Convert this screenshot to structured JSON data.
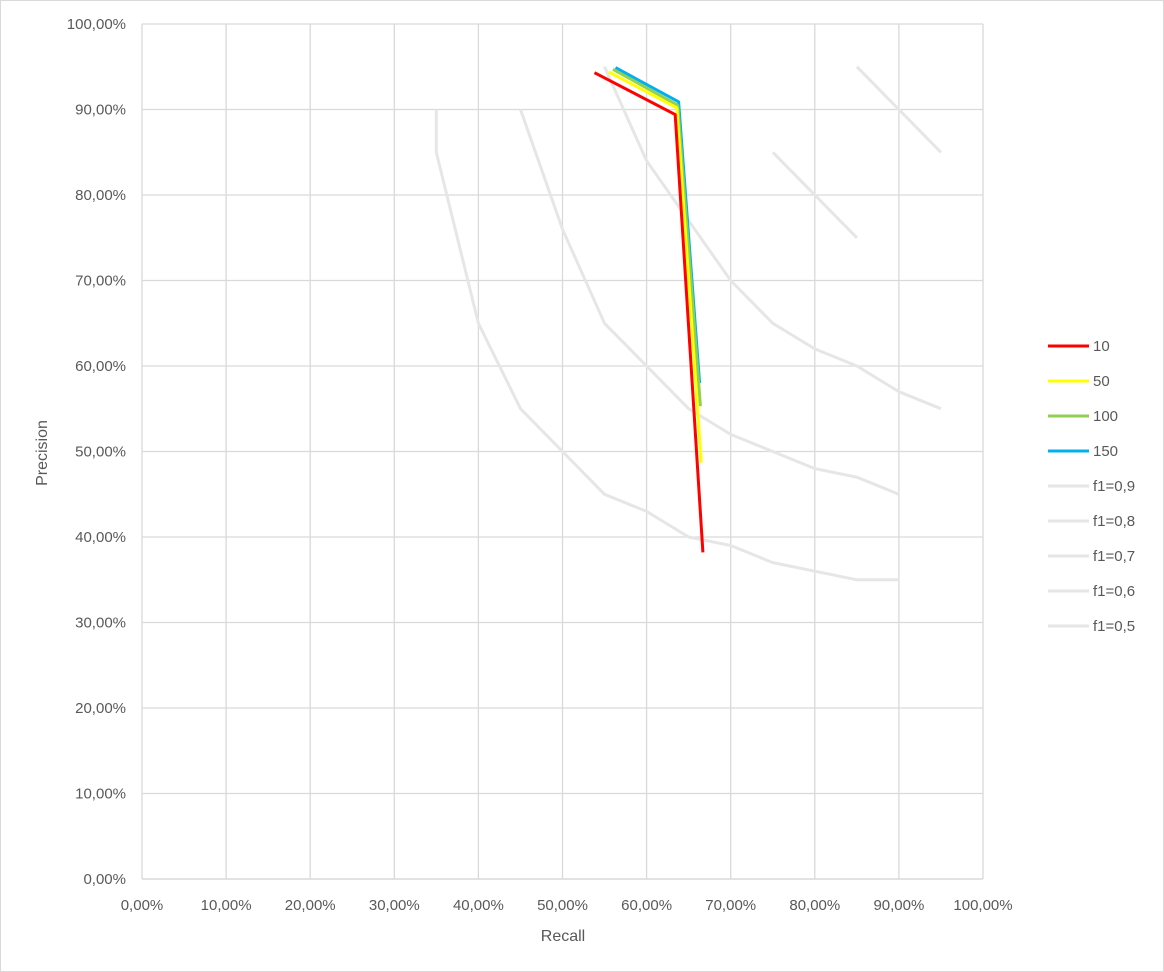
{
  "chart_data": {
    "type": "scatter",
    "title": "",
    "xlabel": "Recall",
    "ylabel": "Precision",
    "xlim": [
      0,
      1
    ],
    "ylim": [
      0,
      1
    ],
    "x_ticks": [
      "0,00%",
      "10,00%",
      "20,00%",
      "30,00%",
      "40,00%",
      "50,00%",
      "60,00%",
      "70,00%",
      "80,00%",
      "90,00%",
      "100,00%"
    ],
    "y_ticks": [
      "0,00%",
      "10,00%",
      "20,00%",
      "30,00%",
      "40,00%",
      "50,00%",
      "60,00%",
      "70,00%",
      "80,00%",
      "90,00%",
      "100,00%"
    ],
    "grid": true,
    "legend_position": "right",
    "series": [
      {
        "name": "10",
        "color": "#ff0000",
        "points": [
          [
            0.538,
            0.943
          ],
          [
            0.634,
            0.894
          ],
          [
            0.667,
            0.382
          ]
        ]
      },
      {
        "name": "50",
        "color": "#ffff00",
        "points": [
          [
            0.555,
            0.944
          ],
          [
            0.636,
            0.902
          ],
          [
            0.665,
            0.487
          ]
        ]
      },
      {
        "name": "100",
        "color": "#92d050",
        "points": [
          [
            0.56,
            0.947
          ],
          [
            0.637,
            0.905
          ],
          [
            0.664,
            0.553
          ]
        ]
      },
      {
        "name": "150",
        "color": "#00b0f0",
        "points": [
          [
            0.563,
            0.949
          ],
          [
            0.638,
            0.909
          ],
          [
            0.663,
            0.58
          ]
        ]
      },
      {
        "name": "f1=0,9",
        "color": "#e6e6e6",
        "points": [
          [
            0.85,
            0.95
          ],
          [
            0.9,
            0.9
          ],
          [
            0.95,
            0.85
          ]
        ]
      },
      {
        "name": "f1=0,8",
        "color": "#e6e6e6",
        "points": [
          [
            0.75,
            0.85
          ],
          [
            0.8,
            0.8
          ],
          [
            0.85,
            0.75
          ]
        ]
      },
      {
        "name": "f1=0,7",
        "color": "#e6e6e6",
        "points": [
          [
            0.55,
            0.95
          ],
          [
            0.6,
            0.84
          ],
          [
            0.65,
            0.77
          ],
          [
            0.7,
            0.7
          ],
          [
            0.75,
            0.65
          ],
          [
            0.8,
            0.62
          ],
          [
            0.85,
            0.6
          ],
          [
            0.9,
            0.57
          ],
          [
            0.95,
            0.55
          ]
        ]
      },
      {
        "name": "f1=0,6",
        "color": "#e6e6e6",
        "points": [
          [
            0.45,
            0.9
          ],
          [
            0.5,
            0.76
          ],
          [
            0.55,
            0.65
          ],
          [
            0.6,
            0.6
          ],
          [
            0.65,
            0.55
          ],
          [
            0.7,
            0.52
          ],
          [
            0.75,
            0.5
          ],
          [
            0.8,
            0.48
          ],
          [
            0.85,
            0.47
          ],
          [
            0.9,
            0.45
          ]
        ]
      },
      {
        "name": "f1=0,5",
        "color": "#e6e6e6",
        "points": [
          [
            0.35,
            0.9
          ],
          [
            0.35,
            0.85
          ],
          [
            0.4,
            0.65
          ],
          [
            0.45,
            0.55
          ],
          [
            0.5,
            0.5
          ],
          [
            0.55,
            0.45
          ],
          [
            0.6,
            0.43
          ],
          [
            0.65,
            0.4
          ],
          [
            0.7,
            0.39
          ],
          [
            0.75,
            0.37
          ],
          [
            0.8,
            0.36
          ],
          [
            0.85,
            0.35
          ],
          [
            0.9,
            0.35
          ]
        ]
      }
    ]
  }
}
